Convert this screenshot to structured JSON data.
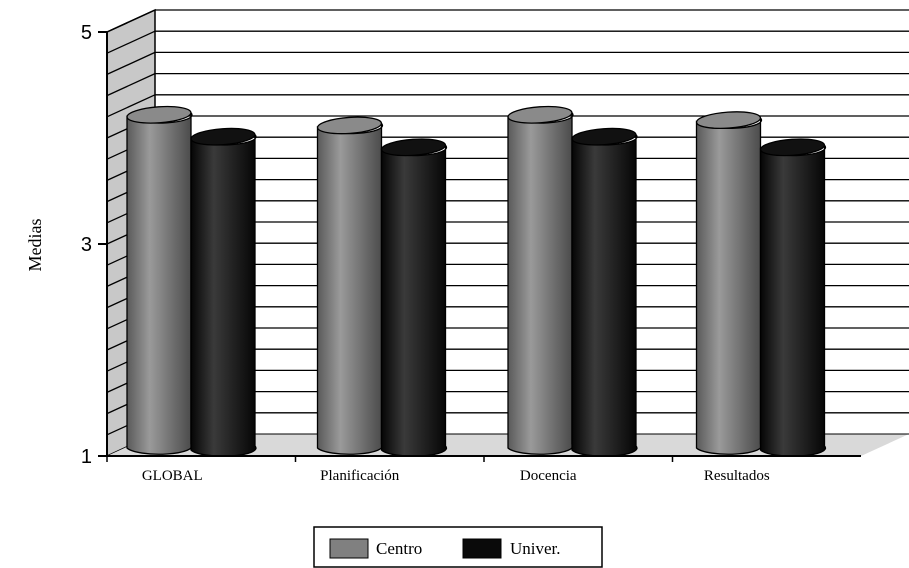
{
  "chart_data": {
    "type": "bar",
    "style": "3d-cylinder",
    "categories": [
      "GLOBAL",
      "Planificación",
      "Docencia",
      "Resultados"
    ],
    "series": [
      {
        "name": "Centro",
        "values": [
          4.2,
          4.1,
          4.2,
          4.15
        ],
        "color": "#808080"
      },
      {
        "name": "Univer.",
        "values": [
          4.05,
          3.95,
          4.05,
          3.95
        ],
        "color": "#1a1a1a"
      }
    ],
    "ylabel": "Medias",
    "ylim": [
      1,
      5
    ],
    "yticks": [
      "1",
      "3",
      "5"
    ],
    "grid": true,
    "legend_position": "bottom-center"
  }
}
